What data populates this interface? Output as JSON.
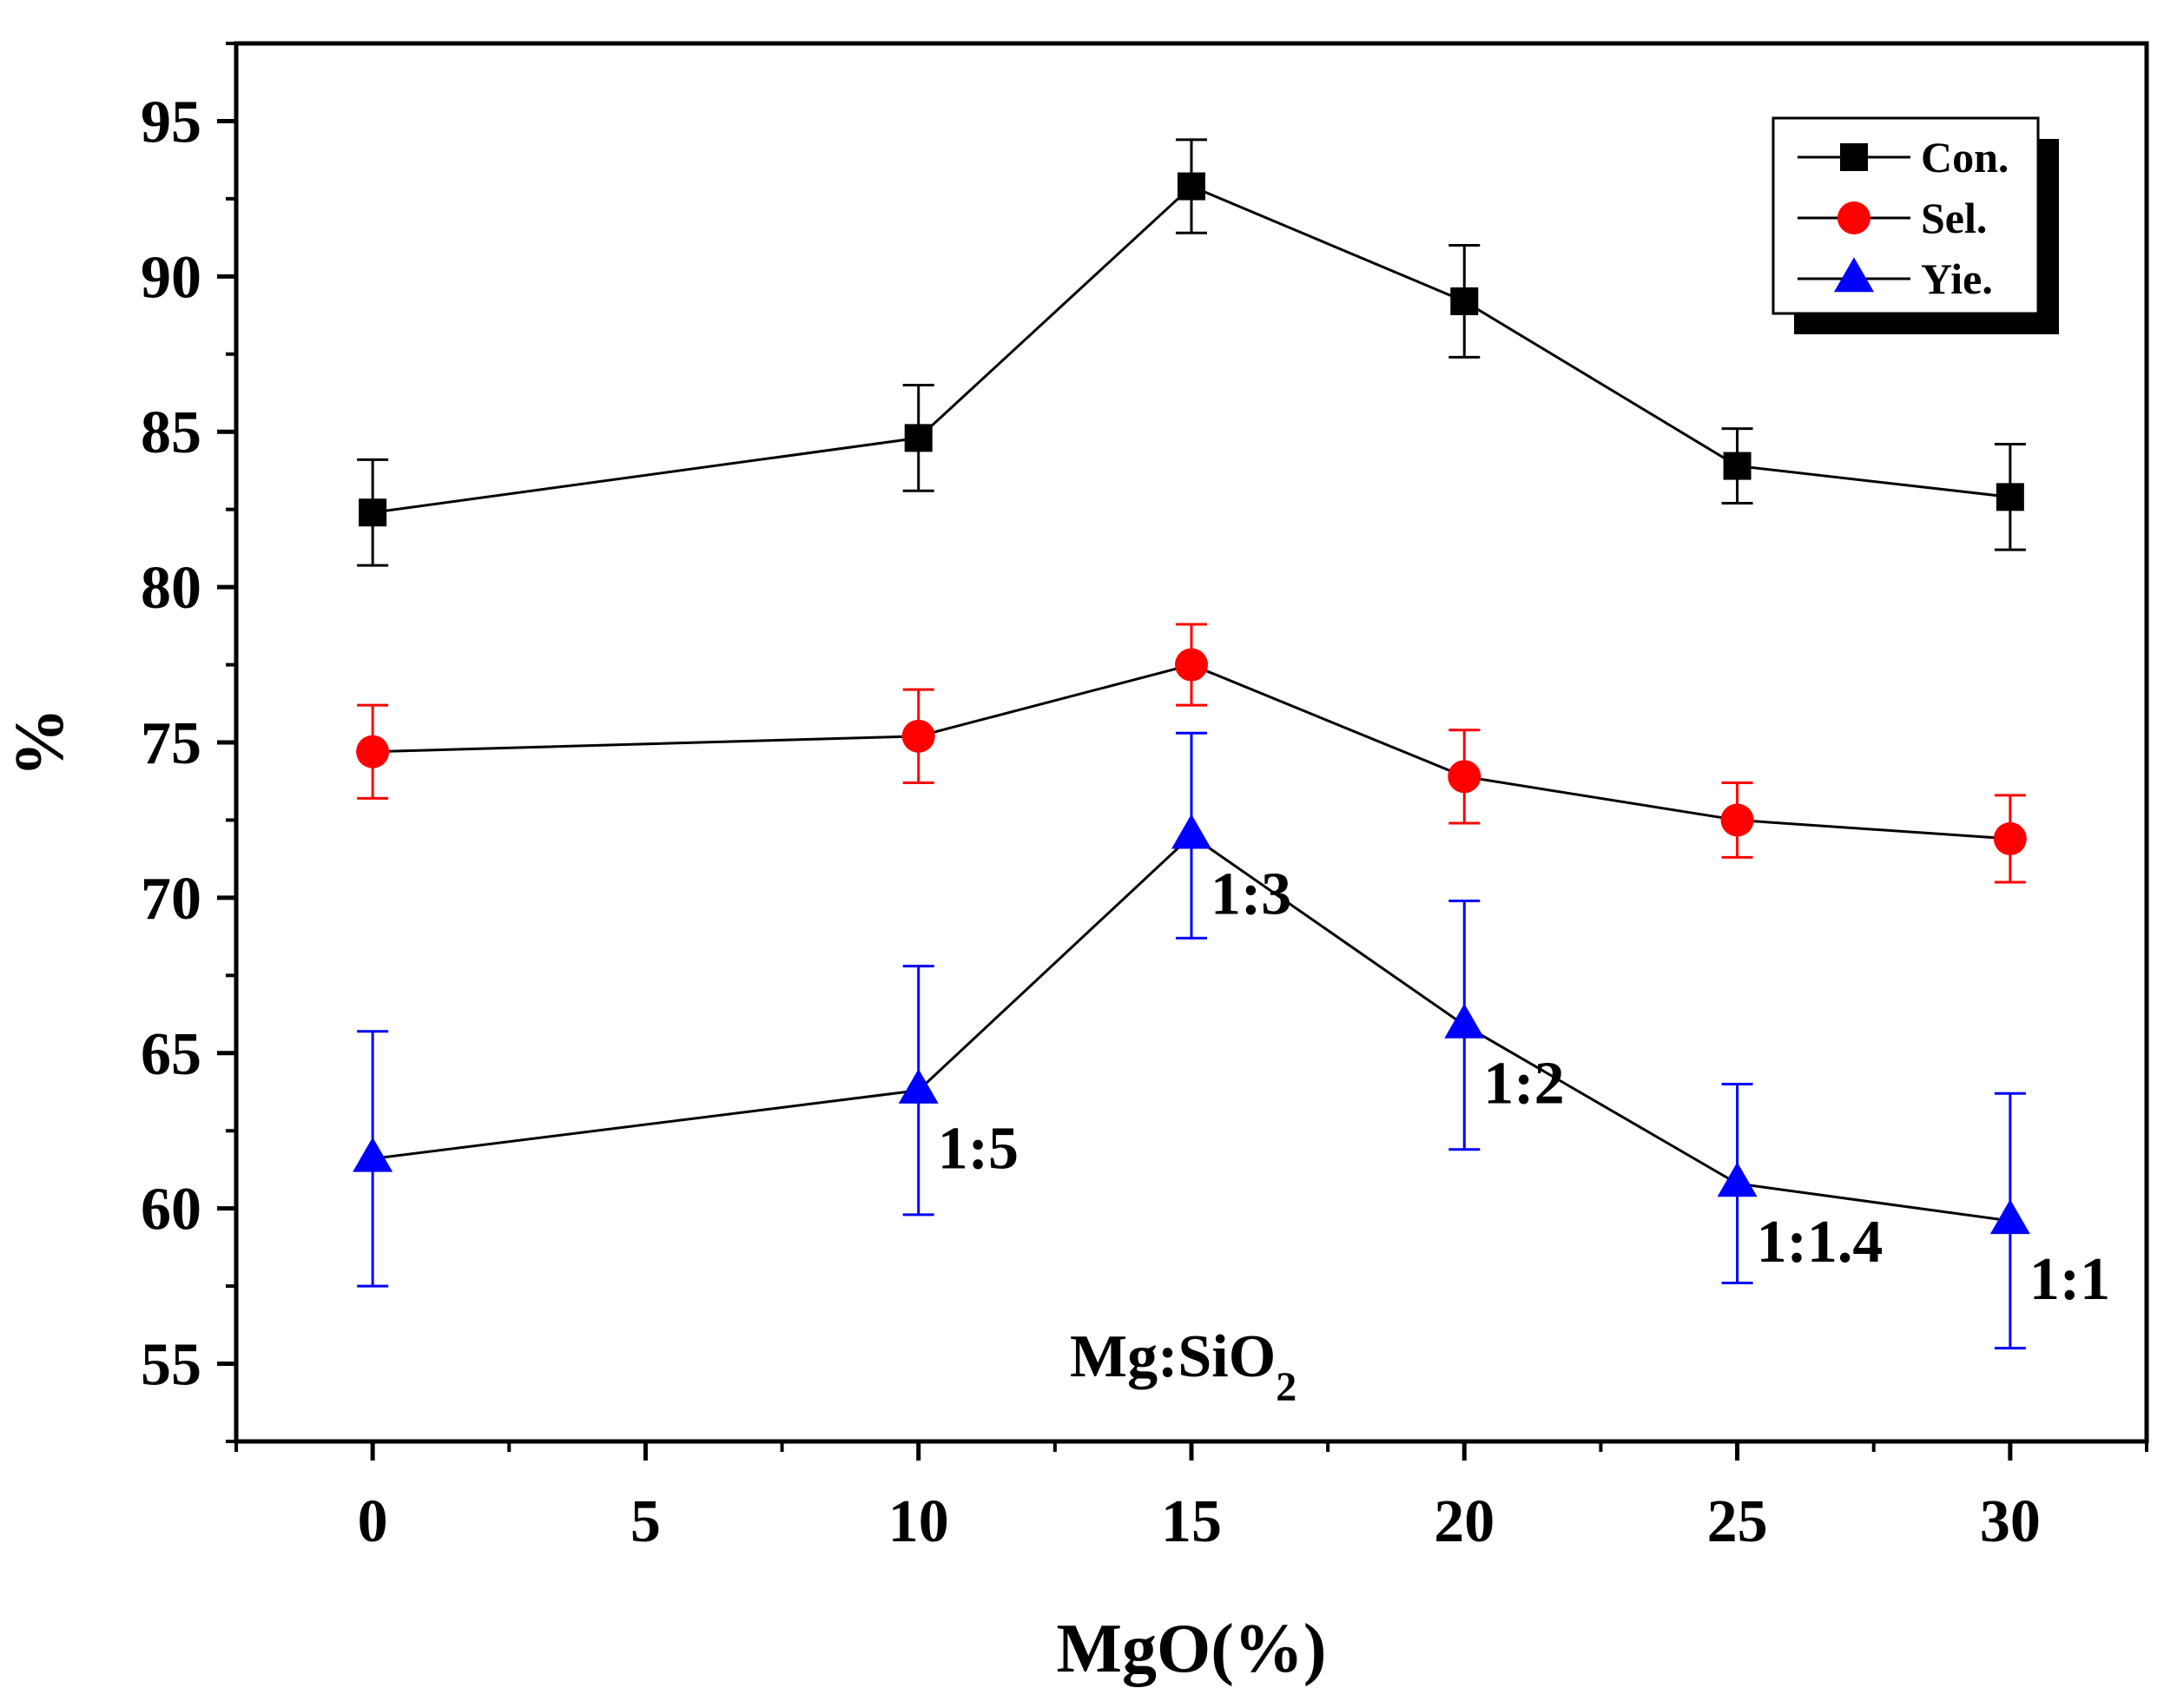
{
  "chart_data": {
    "type": "line",
    "xlabel": "MgO(%)",
    "ylabel": "%",
    "xlim": [
      -2.5,
      32.5
    ],
    "ylim": [
      52.5,
      97.5
    ],
    "xticks": [
      0,
      5,
      10,
      15,
      20,
      25,
      30
    ],
    "yticks": [
      55,
      60,
      65,
      70,
      75,
      80,
      85,
      90,
      95
    ],
    "grid": false,
    "legend_position": "top-right",
    "series": [
      {
        "name": "Con.",
        "color": "#000000",
        "marker": "square",
        "x": [
          0,
          10,
          15,
          20,
          25,
          30
        ],
        "y": [
          82.4,
          84.8,
          92.9,
          89.2,
          83.9,
          82.9
        ],
        "err": [
          1.7,
          1.7,
          1.5,
          1.8,
          1.2,
          1.7
        ]
      },
      {
        "name": "Sel.",
        "color": "#ff0000",
        "marker": "circle",
        "x": [
          0,
          10,
          15,
          20,
          25,
          30
        ],
        "y": [
          74.7,
          75.2,
          77.5,
          73.9,
          72.5,
          71.9
        ],
        "err": [
          1.5,
          1.5,
          1.3,
          1.5,
          1.2,
          1.4
        ]
      },
      {
        "name": "Yie.",
        "color": "#0000ff",
        "marker": "triangle",
        "x": [
          0,
          10,
          15,
          20,
          25,
          30
        ],
        "y": [
          61.6,
          63.8,
          72.0,
          65.9,
          60.8,
          59.6
        ],
        "err": [
          4.1,
          4.0,
          3.3,
          4.0,
          3.2,
          4.1
        ]
      }
    ],
    "annotations": [
      {
        "text": "1:5",
        "x": 10,
        "series": "Yie."
      },
      {
        "text": "1:3",
        "x": 15,
        "series": "Yie."
      },
      {
        "text": "1:2",
        "x": 20,
        "series": "Yie."
      },
      {
        "text": "1:1.4",
        "x": 25,
        "series": "Yie."
      },
      {
        "text": "1:1",
        "x": 30,
        "series": "Yie."
      }
    ],
    "inset_label": {
      "main": "Mg:SiO",
      "subscript": "2"
    }
  }
}
